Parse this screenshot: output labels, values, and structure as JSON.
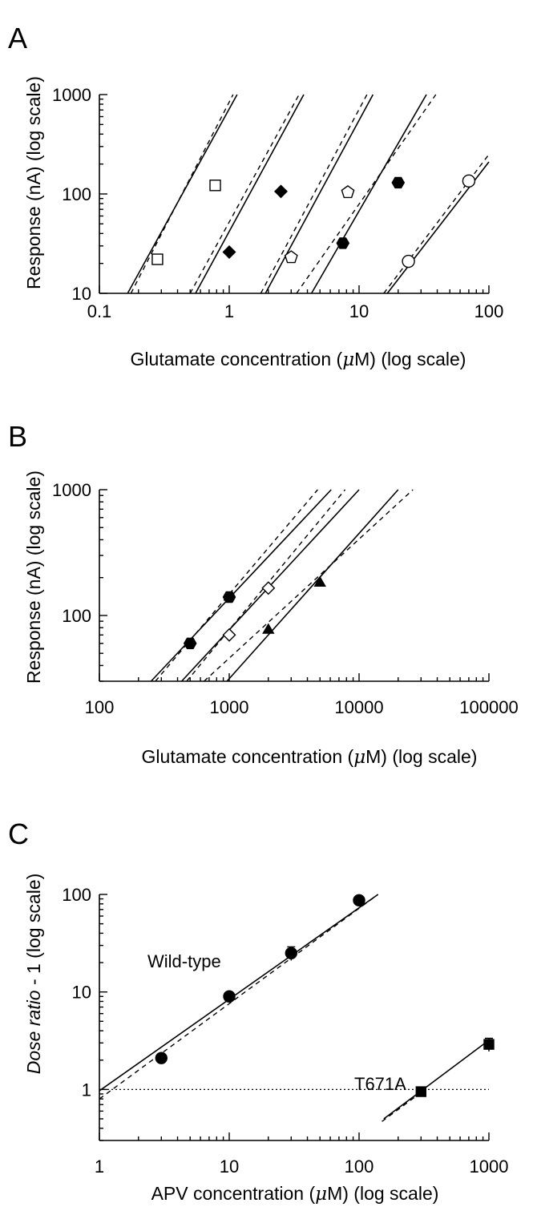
{
  "chart_data": [
    {
      "panel": "A",
      "type": "line",
      "xscale": "log",
      "yscale": "log",
      "xlim": [
        0.1,
        100
      ],
      "ylim": [
        10,
        1000
      ],
      "xticks": [
        0.1,
        1,
        10,
        100
      ],
      "xtick_labels": [
        "0.1",
        "1",
        "10",
        "100"
      ],
      "yticks": [
        10,
        100,
        1000
      ],
      "ytick_labels": [
        "10",
        "100",
        "1000"
      ],
      "xlabel": "Glutamate concentration (μM) (log scale)",
      "ylabel": "Response (nA) (log scale)",
      "series": [
        {
          "marker": "square-open",
          "points": [
            [
              0.28,
              22
            ],
            [
              0.78,
              122
            ]
          ],
          "solid_fit": [
            [
              0.165,
              10
            ],
            [
              1.15,
              1000
            ]
          ],
          "dashed_fit": [
            [
              0.175,
              10
            ],
            [
              1.07,
              1000
            ]
          ]
        },
        {
          "marker": "diamond-filled",
          "points": [
            [
              1.0,
              26
            ],
            [
              2.5,
              106
            ]
          ],
          "solid_fit": [
            [
              0.55,
              10
            ],
            [
              3.75,
              1000
            ]
          ],
          "dashed_fit": [
            [
              0.5,
              10
            ],
            [
              3.45,
              1000
            ]
          ]
        },
        {
          "marker": "pentagon-open",
          "points": [
            [
              3.0,
              23
            ],
            [
              8.2,
              104
            ]
          ],
          "solid_fit": [
            [
              1.9,
              10
            ],
            [
              12.8,
              1000
            ]
          ],
          "dashed_fit": [
            [
              1.75,
              10
            ],
            [
              11.5,
              1000
            ]
          ]
        },
        {
          "marker": "hexagon-filled",
          "points": [
            [
              7.5,
              32
            ],
            [
              20,
              130
            ]
          ],
          "solid_fit": [
            [
              4.3,
              10
            ],
            [
              33,
              1000
            ]
          ],
          "dashed_fit": [
            [
              3.3,
              10
            ],
            [
              39,
              1000
            ]
          ]
        },
        {
          "marker": "circle-open",
          "points": [
            [
              24,
              21
            ],
            [
              70,
              135
            ]
          ],
          "solid_fit": [
            [
              16.5,
              10
            ],
            [
              100,
              210
            ]
          ],
          "dashed_fit": [
            [
              15.5,
              10
            ],
            [
              100,
              250
            ]
          ]
        }
      ]
    },
    {
      "panel": "B",
      "type": "line",
      "xscale": "log",
      "yscale": "log",
      "xlim": [
        100,
        100000
      ],
      "ylim": [
        30,
        1000
      ],
      "xticks": [
        100,
        1000,
        10000,
        100000
      ],
      "xtick_labels": [
        "100",
        "1000",
        "10000",
        "100000"
      ],
      "yticks": [
        100,
        1000
      ],
      "ytick_labels": [
        "100",
        "1000"
      ],
      "xlabel": "Glutamate concentration (μM) (log scale)",
      "ylabel": "Response (nA) (log scale)",
      "series": [
        {
          "marker": "hexagon-filled",
          "points": [
            [
              500,
              60
            ],
            [
              1000,
              140
            ]
          ],
          "solid_fit": [
            [
              250,
              30
            ],
            [
              6100,
              1000
            ]
          ],
          "dashed_fit": [
            [
              270,
              30
            ],
            [
              4800,
              1000
            ]
          ]
        },
        {
          "marker": "diamond-open",
          "points": [
            [
              1000,
              70
            ],
            [
              2000,
              165
            ]
          ],
          "solid_fit": [
            [
              430,
              30
            ],
            [
              10000,
              1000
            ]
          ],
          "dashed_fit": [
            [
              470,
              30
            ],
            [
              7800,
              1000
            ]
          ]
        },
        {
          "marker": "triangle-filled",
          "points": [
            [
              2000,
              78
            ],
            [
              5000,
              185
            ]
          ],
          "solid_fit": [
            [
              960,
              30
            ],
            [
              20000,
              1000
            ]
          ],
          "dashed_fit": [
            [
              640,
              30
            ],
            [
              26000,
              1000
            ]
          ]
        }
      ]
    },
    {
      "panel": "C",
      "type": "line",
      "xscale": "log",
      "yscale": "log",
      "xlim": [
        1,
        1000
      ],
      "ylim": [
        0.3,
        100
      ],
      "xticks": [
        1,
        10,
        100,
        1000
      ],
      "xtick_labels": [
        "1",
        "10",
        "100",
        "1000"
      ],
      "yticks": [
        1,
        10,
        100
      ],
      "ytick_labels": [
        "1",
        "10",
        "100"
      ],
      "xlabel": "APV concentration (μM) (log scale)",
      "ylabel": "Dose ratio - 1 (log scale)",
      "reference_line_y": 1,
      "series": [
        {
          "name": "Wild-type",
          "marker": "circle-filled",
          "points": [
            [
              3,
              2.1
            ],
            [
              10,
              9.0
            ],
            [
              30,
              25
            ],
            [
              100,
              87
            ]
          ],
          "error_up": [
            0,
            0,
            4,
            0
          ],
          "solid_fit": [
            [
              1,
              0.97
            ],
            [
              140,
              100
            ]
          ],
          "dashed_fit": [
            [
              1,
              0.8
            ],
            [
              140,
              100
            ]
          ]
        },
        {
          "name": "T671A",
          "marker": "square-filled",
          "points": [
            [
              300,
              0.95
            ],
            [
              1000,
              2.9
            ]
          ],
          "error_up": [
            0,
            0.45
          ],
          "solid_fit": [
            [
              155,
              0.5
            ],
            [
              1000,
              3.2
            ]
          ],
          "dashed_fit": [
            [
              150,
              0.47
            ],
            [
              300,
              0.93
            ]
          ]
        }
      ]
    }
  ]
}
